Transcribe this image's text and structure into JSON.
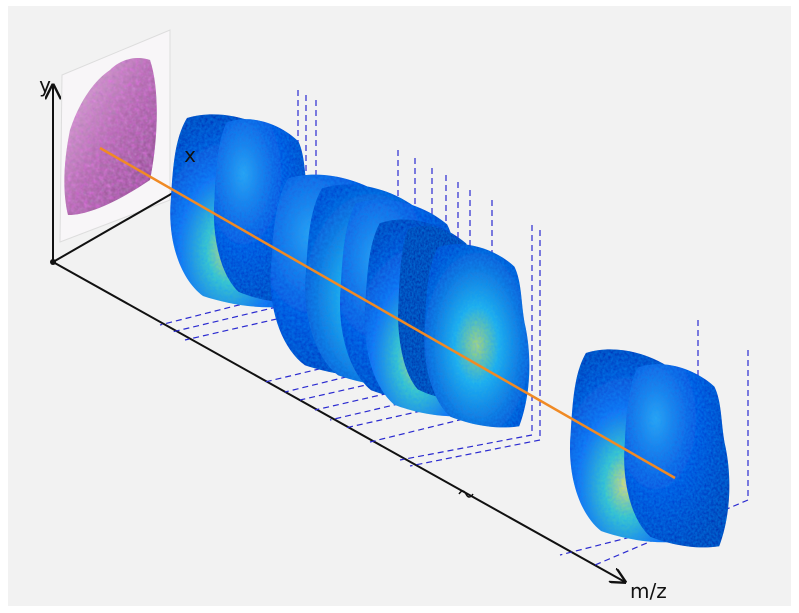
{
  "axes": {
    "y": "y",
    "x": "x",
    "z": "m/z"
  }
}
